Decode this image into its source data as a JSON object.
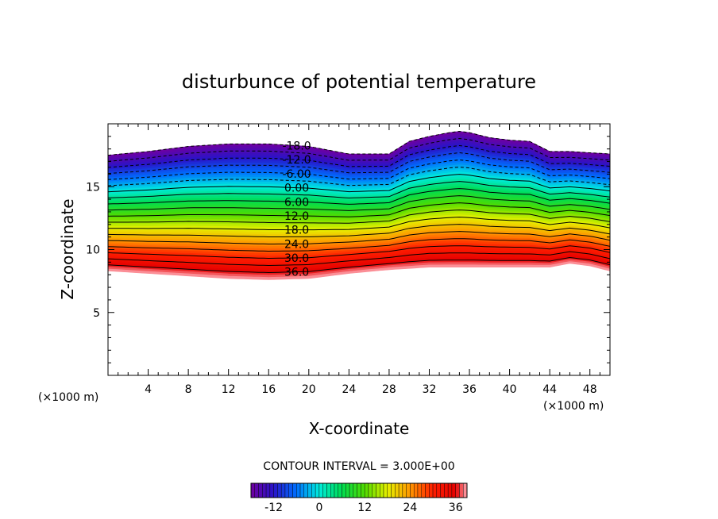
{
  "chart_data": {
    "type": "heatmap",
    "title": "disturbunce of potential temperature",
    "xlabel": "X-coordinate",
    "ylabel": "Z-coordinate",
    "x_unit": "(×1000 m)",
    "y_unit": "(×1000 m)",
    "xlim": [
      0,
      50
    ],
    "ylim": [
      0,
      20
    ],
    "x_ticks": [
      "4",
      "8",
      "12",
      "16",
      "20",
      "24",
      "28",
      "32",
      "36",
      "40",
      "44",
      "48"
    ],
    "y_ticks": [
      "5",
      "10",
      "15"
    ],
    "contour_interval_label": "CONTOUR INTERVAL = 3.000E+00",
    "contour_interval": 3,
    "value_range": [
      -18,
      39
    ],
    "contour_labels": [
      {
        "text": "-18.0",
        "value": -18
      },
      {
        "text": "-12.0",
        "value": -12
      },
      {
        "text": "-6.00",
        "value": -6
      },
      {
        "text": "0.00",
        "value": 0
      },
      {
        "text": "6.00",
        "value": 6
      },
      {
        "text": "12.0",
        "value": 12
      },
      {
        "text": "18.0",
        "value": 18
      },
      {
        "text": "24.0",
        "value": 24
      },
      {
        "text": "30.0",
        "value": 30
      },
      {
        "text": "36.0",
        "value": 36
      }
    ],
    "colorbar_ticks": [
      "-12",
      "0",
      "12",
      "24",
      "36"
    ],
    "negative_contours_dashed": true,
    "field_profiles": {
      "x": [
        0,
        4,
        8,
        12,
        16,
        20,
        24,
        28,
        30,
        32,
        34,
        35,
        36,
        38,
        40,
        42,
        44,
        46,
        48,
        50
      ],
      "z_bottom": [
        8.3,
        8.1,
        7.9,
        7.7,
        7.6,
        7.7,
        8.1,
        8.4,
        8.5,
        8.6,
        8.6,
        8.6,
        8.6,
        8.6,
        8.6,
        8.6,
        8.6,
        8.9,
        8.7,
        8.3
      ],
      "z_top": [
        17.5,
        17.8,
        18.2,
        18.4,
        18.4,
        18.2,
        17.6,
        17.6,
        18.6,
        19.0,
        19.3,
        19.4,
        19.3,
        18.9,
        18.7,
        18.6,
        17.8,
        17.8,
        17.7,
        17.6
      ]
    }
  }
}
